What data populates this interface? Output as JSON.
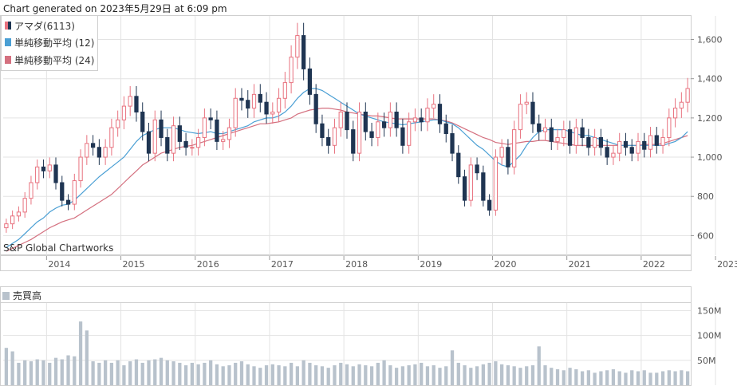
{
  "header": {
    "generated": "Chart generated on 2023年5月29日 at 6:09 pm"
  },
  "legend": [
    {
      "label": "アマダ(6113)",
      "color": "#1f3552"
    },
    {
      "label": "単純移動平均 (12)",
      "color": "#4a9fd4"
    },
    {
      "label": "単純移動平均 (24)",
      "color": "#d4707f"
    }
  ],
  "watermark": "S&P Global Chartworks",
  "volume_panel": {
    "title": "売買高",
    "color": "#b8c2cc"
  },
  "colors": {
    "up": "#e8727f",
    "down": "#1f3552",
    "ma12": "#4a9fd4",
    "ma24": "#d4707f",
    "grid": "#e3e3e3"
  },
  "chart_data": [
    {
      "type": "candlestick",
      "frequency": "monthly",
      "x_ticks": [
        "2014",
        "2015",
        "2016",
        "2017",
        "2018",
        "2019",
        "2020",
        "2021",
        "2022",
        "2023"
      ],
      "y_ticks": [
        "600",
        "800",
        "1,000",
        "1,200",
        "1,400",
        "1,600"
      ],
      "ylim": [
        500,
        1720
      ],
      "close": [
        660,
        700,
        720,
        790,
        870,
        950,
        930,
        960,
        870,
        780,
        760,
        880,
        1000,
        1070,
        1050,
        1000,
        1050,
        1150,
        1190,
        1260,
        1310,
        1230,
        1130,
        1020,
        1190,
        1100,
        1020,
        1160,
        1080,
        1050,
        1050,
        1100,
        1200,
        1190,
        1080,
        1090,
        1150,
        1300,
        1290,
        1250,
        1320,
        1280,
        1220,
        1230,
        1300,
        1380,
        1510,
        1620,
        1450,
        1320,
        1170,
        1100,
        1060,
        1150,
        1230,
        1140,
        1020,
        1230,
        1130,
        1100,
        1180,
        1150,
        1230,
        1150,
        1060,
        1180,
        1200,
        1180,
        1250,
        1270,
        1170,
        1120,
        1020,
        900,
        780,
        960,
        920,
        780,
        730,
        1000,
        1050,
        950,
        1140,
        1270,
        1280,
        1170,
        1130,
        1150,
        1080,
        1100,
        1140,
        1060,
        1150,
        1100,
        1050,
        1100,
        1050,
        1000,
        1020,
        1080,
        1050,
        1020,
        1080,
        1040,
        1110,
        1060,
        1100,
        1200,
        1250,
        1280,
        1350
      ],
      "ma12": [
        540,
        560,
        580,
        610,
        640,
        670,
        690,
        720,
        740,
        755,
        760,
        780,
        810,
        840,
        870,
        900,
        925,
        950,
        975,
        1000,
        1040,
        1080,
        1110,
        1125,
        1140,
        1150,
        1150,
        1150,
        1140,
        1130,
        1125,
        1120,
        1125,
        1130,
        1120,
        1120,
        1130,
        1140,
        1150,
        1160,
        1180,
        1190,
        1200,
        1200,
        1210,
        1230,
        1260,
        1300,
        1330,
        1350,
        1350,
        1340,
        1320,
        1300,
        1280,
        1260,
        1240,
        1220,
        1210,
        1200,
        1190,
        1180,
        1175,
        1170,
        1165,
        1170,
        1175,
        1180,
        1185,
        1190,
        1190,
        1180,
        1170,
        1150,
        1120,
        1090,
        1060,
        1040,
        1010,
        980,
        960,
        950,
        980,
        1010,
        1060,
        1100,
        1130,
        1140,
        1140,
        1140,
        1140,
        1130,
        1120,
        1110,
        1110,
        1100,
        1090,
        1080,
        1070,
        1060,
        1060,
        1060,
        1060,
        1060,
        1060,
        1060,
        1060,
        1070,
        1080,
        1100,
        1130
      ],
      "ma24": [
        520,
        535,
        550,
        565,
        580,
        600,
        620,
        640,
        655,
        670,
        680,
        690,
        710,
        730,
        750,
        770,
        790,
        810,
        840,
        870,
        900,
        930,
        960,
        980,
        1000,
        1020,
        1030,
        1040,
        1050,
        1055,
        1060,
        1070,
        1080,
        1090,
        1100,
        1110,
        1120,
        1130,
        1140,
        1150,
        1160,
        1170,
        1170,
        1175,
        1180,
        1190,
        1200,
        1220,
        1230,
        1240,
        1245,
        1250,
        1250,
        1245,
        1240,
        1230,
        1225,
        1220,
        1215,
        1210,
        1210,
        1205,
        1200,
        1195,
        1195,
        1195,
        1195,
        1195,
        1195,
        1195,
        1190,
        1185,
        1175,
        1160,
        1145,
        1130,
        1115,
        1100,
        1090,
        1075,
        1070,
        1065,
        1070,
        1075,
        1080,
        1080,
        1085,
        1085,
        1080,
        1075,
        1070,
        1065,
        1060,
        1060,
        1060,
        1060,
        1060,
        1060,
        1060,
        1060,
        1060,
        1060,
        1060,
        1065,
        1065,
        1065,
        1070,
        1080,
        1090,
        1100,
        1110
      ]
    },
    {
      "type": "bar",
      "title": "売買高",
      "y_ticks": [
        "50M",
        "100M",
        "150M"
      ],
      "ylim": [
        0,
        165
      ],
      "values": [
        75,
        68,
        45,
        50,
        48,
        52,
        50,
        45,
        55,
        52,
        60,
        58,
        128,
        110,
        48,
        45,
        50,
        45,
        50,
        40,
        48,
        52,
        45,
        50,
        52,
        55,
        50,
        48,
        45,
        40,
        45,
        42,
        45,
        50,
        42,
        38,
        40,
        45,
        48,
        42,
        38,
        35,
        40,
        42,
        40,
        38,
        45,
        38,
        50,
        45,
        40,
        38,
        35,
        40,
        45,
        42,
        38,
        42,
        40,
        38,
        45,
        50,
        40,
        35,
        38,
        40,
        42,
        45,
        38,
        40,
        35,
        38,
        70,
        45,
        40,
        35,
        38,
        42,
        45,
        48,
        42,
        40,
        38,
        35,
        38,
        40,
        78,
        40,
        35,
        32,
        30,
        35,
        32,
        28,
        30,
        25,
        28,
        30,
        32,
        28,
        25,
        30,
        28,
        30,
        25,
        25,
        28,
        30,
        28,
        30,
        28
      ]
    }
  ]
}
